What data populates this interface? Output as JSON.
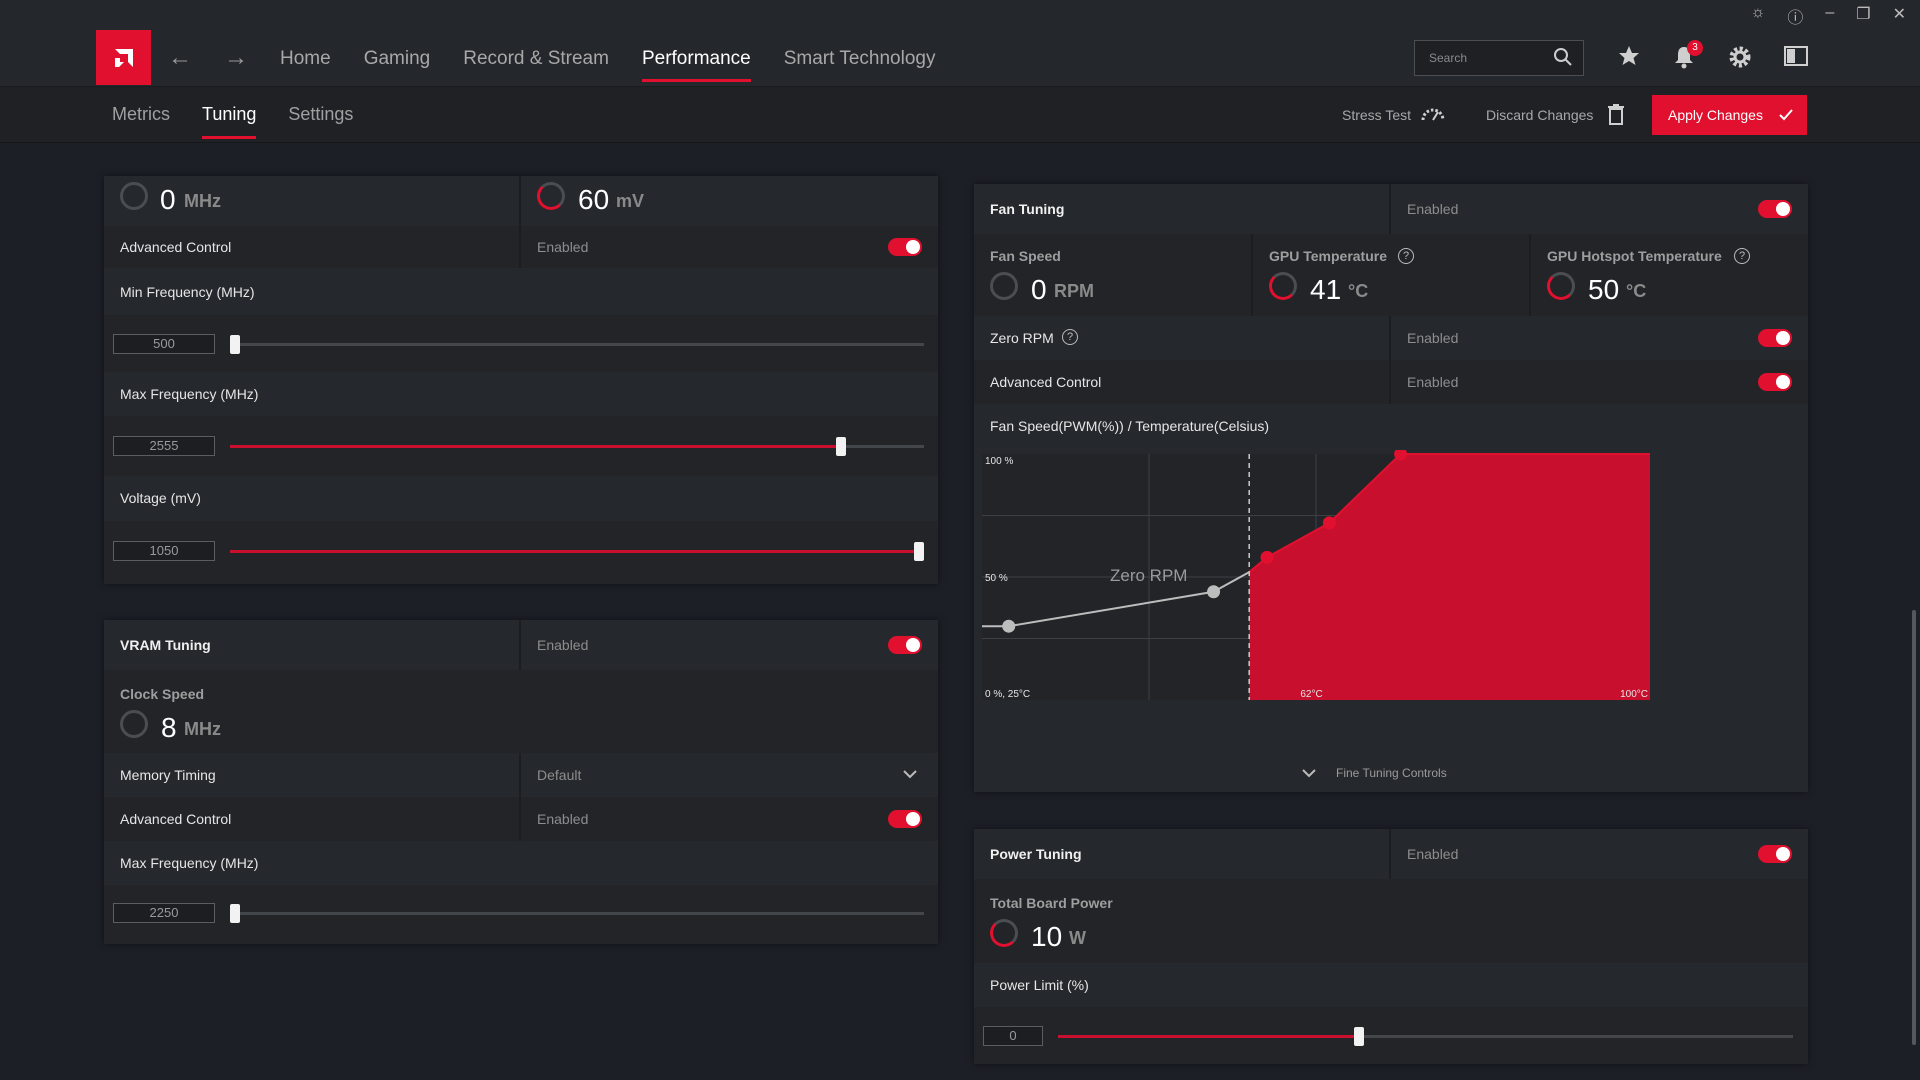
{
  "colors": {
    "accent": "#e0102e",
    "bg": "#1c1f26",
    "panel": "#25282c"
  },
  "titlebar": {
    "icons": [
      "bug-icon",
      "help-icon",
      "minimize-icon",
      "restore-icon",
      "close-icon"
    ]
  },
  "topnav": {
    "items": [
      "Home",
      "Gaming",
      "Record & Stream",
      "Performance",
      "Smart Technology"
    ],
    "active": "Performance",
    "search_placeholder": "Search",
    "notification_count": "3"
  },
  "subnav": {
    "tabs": [
      "Metrics",
      "Tuning",
      "Settings"
    ],
    "active": "Tuning",
    "stress_test": "Stress Test",
    "discard": "Discard Changes",
    "apply": "Apply Changes"
  },
  "gpu": {
    "clock_value": "0",
    "clock_unit": "MHz",
    "voltage_value": "60",
    "voltage_unit": "mV",
    "advanced_control": "Advanced Control",
    "advanced_status": "Enabled",
    "min_freq_label": "Min Frequency (MHz)",
    "min_freq_value": "500",
    "min_freq_pos": 0.0,
    "max_freq_label": "Max Frequency (MHz)",
    "max_freq_value": "2555",
    "max_freq_pos": 0.88,
    "voltage_label": "Voltage (mV)",
    "voltage_mv_value": "1050",
    "voltage_pos": 1.0
  },
  "vram": {
    "title": "VRAM Tuning",
    "status": "Enabled",
    "clock_label": "Clock Speed",
    "clock_value": "8",
    "clock_unit": "MHz",
    "memory_timing_label": "Memory Timing",
    "memory_timing_value": "Default",
    "advanced_control": "Advanced Control",
    "advanced_status": "Enabled",
    "max_freq_label": "Max Frequency (MHz)",
    "max_freq_value": "2250",
    "max_freq_pos": 0.0
  },
  "fan": {
    "title": "Fan Tuning",
    "status": "Enabled",
    "fan_speed_label": "Fan Speed",
    "fan_speed_value": "0",
    "fan_speed_unit": "RPM",
    "gpu_temp_label": "GPU Temperature",
    "gpu_temp_value": "41",
    "gpu_temp_unit": "°C",
    "hotspot_label": "GPU Hotspot Temperature",
    "hotspot_value": "50",
    "hotspot_unit": "°C",
    "zero_rpm_label": "Zero RPM",
    "zero_rpm_status": "Enabled",
    "advanced_control": "Advanced Control",
    "advanced_status": "Enabled",
    "curve_title": "Fan Speed(PWM(%)) / Temperature(Celsius)",
    "fine_tuning": "Fine Tuning Controls"
  },
  "chart_data": {
    "type": "area",
    "x_unit": "°C",
    "y_unit": "%",
    "xlim": [
      25,
      100
    ],
    "ylim": [
      0,
      100
    ],
    "x_ticks": [
      "0 %, 25°C",
      "62°C",
      "100°C"
    ],
    "y_ticks": [
      "100 %",
      "50 %"
    ],
    "zero_rpm_label": "Zero RPM",
    "zero_rpm_threshold": 55,
    "points": [
      {
        "x": 28,
        "y": 30,
        "zero_rpm": true
      },
      {
        "x": 51,
        "y": 44,
        "zero_rpm": true
      },
      {
        "x": 57,
        "y": 58,
        "zero_rpm": false
      },
      {
        "x": 64,
        "y": 72,
        "zero_rpm": false
      },
      {
        "x": 72,
        "y": 100,
        "zero_rpm": false
      }
    ]
  },
  "power": {
    "title": "Power Tuning",
    "status": "Enabled",
    "board_power_label": "Total Board Power",
    "board_power_value": "10",
    "board_power_unit": "W",
    "limit_label": "Power Limit (%)",
    "limit_value": "0",
    "limit_pos": 0.41
  }
}
